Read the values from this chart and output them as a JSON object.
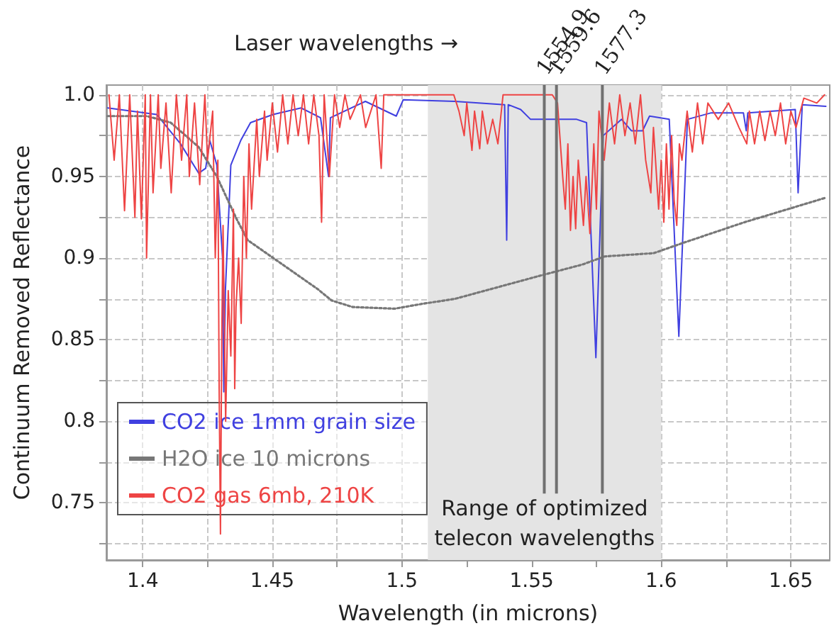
{
  "chart_data": {
    "type": "line",
    "xlabel": "Wavelength (in microns)",
    "ylabel": "Continuum Removed Reflectance",
    "annotations": [
      "Laser wavelengths →"
    ],
    "xlim": [
      1.386,
      1.665
    ],
    "ylim": [
      0.715,
      1.006
    ],
    "xticks": [
      1.4,
      {
        "value": 1.425,
        "label": null
      },
      1.45,
      {
        "value": 1.475,
        "label": null
      },
      1.5,
      {
        "value": 1.525,
        "label": null
      },
      1.55,
      {
        "value": 1.575,
        "label": null
      },
      1.6,
      {
        "value": 1.625,
        "label": null
      },
      1.65
    ],
    "yticks": [
      {
        "value": 0.725,
        "label": null
      },
      0.75,
      {
        "value": 0.775,
        "label": null
      },
      {
        "value": 0.8,
        "label": "0.8"
      },
      {
        "value": 0.825,
        "label": null
      },
      0.85,
      {
        "value": 0.875,
        "label": null
      },
      {
        "value": 0.9,
        "label": "0.9"
      },
      {
        "value": 0.925,
        "label": null
      },
      0.95,
      {
        "value": 0.975,
        "label": null
      },
      {
        "value": 1,
        "label": "1.0"
      }
    ],
    "grid": true,
    "legend": "bottom left",
    "marker": "none",
    "bands": [
      {
        "axis": "x",
        "from": 1.51,
        "to": 1.6,
        "label": "Range of optimized\ntelecon wavelengths",
        "color": "#e4e4e4"
      }
    ],
    "ref_lines": [
      {
        "axis": "x",
        "value": 1.5549,
        "label": "1554.9",
        "color": "#707070"
      },
      {
        "axis": "x",
        "value": 1.5596,
        "label": "1559.6",
        "color": "#707070"
      },
      {
        "axis": "x",
        "value": 1.5773,
        "label": "1577.3",
        "color": "#707070"
      }
    ],
    "series": [
      {
        "name": "CO2 ice 1mm grain size",
        "color": "#4040e0",
        "line_style": "solid",
        "x": [
          1.3865,
          1.4054,
          1.4146,
          1.4216,
          1.4243,
          1.4259,
          1.4286,
          1.4308,
          1.4313,
          1.4319,
          1.434,
          1.4378,
          1.4416,
          1.4503,
          1.4611,
          1.4686,
          1.4717,
          1.4724,
          1.4859,
          1.4978,
          1.5005,
          1.5204,
          1.5396,
          1.5404,
          1.541,
          1.5458,
          1.5496,
          1.5674,
          1.5712,
          1.5748,
          1.5776,
          1.5847,
          1.5885,
          1.5928,
          1.5955,
          1.6031,
          1.6068,
          1.6101,
          1.6193,
          1.6317,
          1.6328,
          1.6334,
          1.6517,
          1.6528,
          1.6544,
          1.6635
        ],
        "values": [
          0.992,
          0.988,
          0.97,
          0.952,
          0.955,
          0.972,
          0.957,
          0.9,
          0.818,
          0.88,
          0.957,
          0.972,
          0.983,
          0.988,
          0.992,
          0.986,
          0.95,
          0.986,
          0.996,
          0.987,
          0.997,
          0.996,
          0.994,
          0.911,
          0.994,
          0.991,
          0.985,
          0.985,
          0.983,
          0.839,
          0.975,
          0.985,
          0.978,
          0.978,
          0.987,
          0.985,
          0.852,
          0.985,
          0.989,
          0.989,
          0.978,
          0.989,
          0.991,
          0.94,
          0.994,
          0.993
        ]
      },
      {
        "name": "H2O ice 10 microns",
        "color": "#777777",
        "line_style": "dotted",
        "x": [
          1.3865,
          1.4016,
          1.4108,
          1.4216,
          1.4286,
          1.4324,
          1.4362,
          1.4405,
          1.4486,
          1.454,
          1.4675,
          1.4729,
          1.481,
          1.4972,
          1.508,
          1.5204,
          1.5528,
          1.5695,
          1.5782,
          1.5971,
          1.6079,
          1.6322,
          1.6635
        ],
        "values": [
          0.987,
          0.987,
          0.983,
          0.968,
          0.95,
          0.937,
          0.924,
          0.911,
          0.902,
          0.896,
          0.881,
          0.874,
          0.87,
          0.869,
          0.872,
          0.875,
          0.889,
          0.896,
          0.901,
          0.903,
          0.909,
          0.922,
          0.937
        ]
      },
      {
        "name": "CO2 gas 6mb, 210K",
        "color": "#ee4444",
        "line_style": "solid",
        "x": [
          1.387,
          1.389,
          1.391,
          1.393,
          1.395,
          1.397,
          1.398,
          1.3995,
          1.401,
          1.4015,
          1.403,
          1.404,
          1.406,
          1.407,
          1.409,
          1.411,
          1.413,
          1.415,
          1.417,
          1.418,
          1.42,
          1.422,
          1.424,
          1.425,
          1.427,
          1.428,
          1.429,
          1.4295,
          1.43,
          1.4305,
          1.431,
          1.432,
          1.433,
          1.434,
          1.435,
          1.4355,
          1.436,
          1.437,
          1.438,
          1.439,
          1.44,
          1.441,
          1.442,
          1.444,
          1.445,
          1.447,
          1.448,
          1.45,
          1.452,
          1.454,
          1.456,
          1.458,
          1.46,
          1.462,
          1.464,
          1.466,
          1.468,
          1.469,
          1.47,
          1.472,
          1.474,
          1.476,
          1.478,
          1.48,
          1.484,
          1.486,
          1.49,
          1.492,
          1.493,
          1.5,
          1.52,
          1.522,
          1.524,
          1.525,
          1.527,
          1.528,
          1.53,
          1.531,
          1.533,
          1.535,
          1.537,
          1.539,
          1.558,
          1.56,
          1.562,
          1.563,
          1.564,
          1.565,
          1.566,
          1.567,
          1.568,
          1.57,
          1.571,
          1.5725,
          1.574,
          1.575,
          1.576,
          1.578,
          1.58,
          1.582,
          1.584,
          1.586,
          1.588,
          1.59,
          1.592,
          1.594,
          1.596,
          1.597,
          1.599,
          1.6,
          1.601,
          1.602,
          1.603,
          1.604,
          1.605,
          1.606,
          1.607,
          1.608,
          1.61,
          1.612,
          1.614,
          1.616,
          1.618,
          1.622,
          1.626,
          1.63,
          1.633,
          1.634,
          1.636,
          1.638,
          1.64,
          1.642,
          1.644,
          1.646,
          1.648,
          1.65,
          1.652,
          1.655,
          1.66,
          1.663
        ],
        "values": [
          1,
          0.96,
          1,
          0.929,
          1,
          0.925,
          0.99,
          0.924,
          1,
          0.9,
          1,
          0.94,
          1,
          0.955,
          0.995,
          0.94,
          1,
          0.96,
          1,
          0.95,
          0.995,
          0.945,
          1,
          0.96,
          0.99,
          0.9,
          0.96,
          0.82,
          0.731,
          0.85,
          0.92,
          0.8,
          0.88,
          0.84,
          0.93,
          0.82,
          0.87,
          0.9,
          0.86,
          0.95,
          0.9,
          0.97,
          0.93,
          0.985,
          0.95,
          0.99,
          0.96,
          0.995,
          0.965,
          1,
          0.97,
          1,
          0.975,
          1,
          0.97,
          1,
          0.975,
          0.922,
          1,
          0.95,
          1,
          0.98,
          1,
          0.985,
          1,
          0.98,
          1,
          0.955,
          1,
          1,
          1,
          0.99,
          0.975,
          0.995,
          0.966,
          0.99,
          0.967,
          0.99,
          0.97,
          0.985,
          0.97,
          1,
          1,
          0.995,
          0.95,
          0.93,
          0.97,
          0.917,
          0.95,
          0.918,
          0.96,
          0.92,
          0.95,
          0.915,
          0.97,
          0.93,
          0.99,
          0.96,
          0.995,
          0.97,
          1,
          0.975,
          0.995,
          0.97,
          1,
          0.96,
          0.94,
          0.98,
          0.93,
          0.96,
          0.922,
          0.97,
          0.93,
          0.975,
          0.935,
          0.92,
          0.97,
          0.96,
          0.99,
          0.965,
          0.995,
          0.97,
          0.995,
          0.985,
          0.995,
          0.98,
          0.97,
          0.99,
          0.97,
          0.99,
          0.972,
          0.99,
          0.975,
          0.995,
          0.97,
          0.99,
          0.98,
          0.998,
          0.995,
          1
        ]
      }
    ]
  }
}
